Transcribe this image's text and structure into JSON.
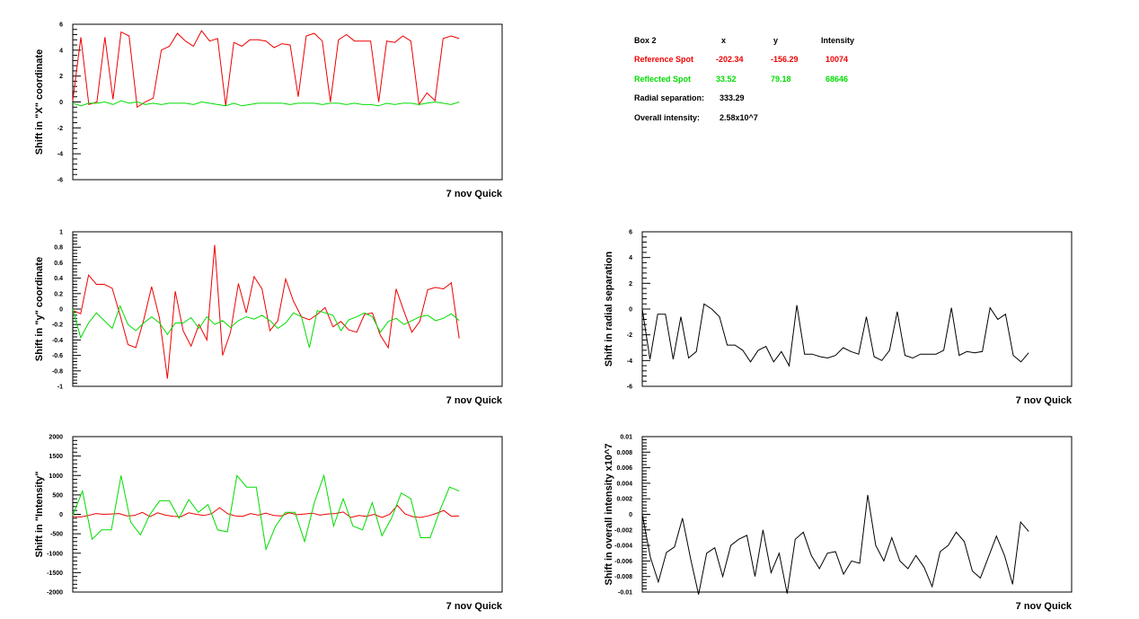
{
  "colors": {
    "reference": "#ee0000",
    "reflected": "#00dd00",
    "single": "#000000",
    "axis": "#000000"
  },
  "info_box": {
    "title": "Box 2",
    "col_x": "x",
    "col_y": "y",
    "col_intensity": "Intensity",
    "reference_label": "Reference Spot",
    "reference_x": "-202.34",
    "reference_y": "-156.29",
    "reference_intensity": "10074",
    "reflected_label": "Reflected Spot",
    "reflected_x": "33.52",
    "reflected_y": "79.18",
    "reflected_intensity": "68646",
    "radial_label": "Radial separation:",
    "radial_value": "333.29",
    "overall_label": "Overall intensity:",
    "overall_value": "2.58x10^7"
  },
  "chart_data": [
    {
      "id": "x-shift",
      "type": "line",
      "ylabel": "Shift in \"X\" coordinate",
      "xtitle": "7 nov Quick",
      "ylim": [
        -6,
        6
      ],
      "major_ticks": [
        -6,
        -4,
        -2,
        0,
        2,
        4,
        6
      ],
      "tick_labels": [
        "-6",
        "-4",
        "-2",
        "0",
        "2",
        "4",
        "6"
      ],
      "series": [
        {
          "color": "#ee0000",
          "values": [
            0.1,
            5.0,
            -0.2,
            0.0,
            5.0,
            0.2,
            5.4,
            5.1,
            -0.4,
            0.0,
            0.3,
            4.0,
            4.3,
            5.3,
            4.7,
            4.3,
            5.5,
            4.7,
            4.9,
            -0.3,
            4.6,
            4.3,
            4.8,
            4.8,
            4.7,
            4.2,
            4.5,
            4.4,
            0.4,
            5.1,
            5.3,
            4.7,
            0.0,
            4.8,
            5.2,
            4.7,
            4.7,
            4.7,
            0.0,
            4.7,
            4.6,
            5.1,
            4.7,
            -0.2,
            0.7,
            0.1,
            4.9,
            5.1,
            4.9
          ]
        },
        {
          "color": "#00dd00",
          "values": [
            -0.1,
            -0.3,
            -0.1,
            -0.1,
            0.0,
            -0.2,
            0.1,
            -0.1,
            0.0,
            -0.2,
            -0.1,
            -0.2,
            -0.1,
            -0.1,
            -0.1,
            -0.2,
            0.0,
            -0.1,
            -0.2,
            -0.3,
            -0.1,
            -0.3,
            -0.2,
            -0.1,
            -0.1,
            -0.1,
            -0.1,
            -0.2,
            -0.1,
            -0.1,
            -0.1,
            -0.2,
            -0.1,
            -0.1,
            -0.2,
            -0.1,
            -0.2,
            -0.2,
            -0.3,
            -0.1,
            -0.2,
            -0.1,
            -0.1,
            -0.2,
            -0.1,
            0.0,
            -0.1,
            -0.2,
            0.0
          ]
        }
      ]
    },
    {
      "id": "y-shift",
      "type": "line",
      "ylabel": "Shift in \"y\" coordinate",
      "xtitle": "7 nov Quick",
      "ylim": [
        -1,
        1
      ],
      "major_ticks": [
        -1,
        -0.8,
        -0.6,
        -0.4,
        -0.2,
        0,
        0.2,
        0.4,
        0.6,
        0.8,
        1
      ],
      "tick_labels": [
        "-1",
        "-0.8",
        "-0.6",
        "-0.4",
        "-0.2",
        "0",
        "0.2",
        "0.4",
        "0.6",
        "0.8",
        "1"
      ],
      "series": [
        {
          "color": "#ee0000",
          "values": [
            -0.02,
            -0.06,
            0.44,
            0.32,
            0.32,
            0.27,
            -0.08,
            -0.46,
            -0.5,
            -0.14,
            0.29,
            -0.12,
            -0.9,
            0.23,
            -0.28,
            -0.48,
            -0.2,
            -0.4,
            0.83,
            -0.6,
            -0.3,
            0.33,
            -0.05,
            0.42,
            0.26,
            -0.28,
            -0.15,
            0.39,
            0.1,
            -0.1,
            -0.14,
            -0.07,
            0.02,
            -0.23,
            -0.16,
            -0.27,
            -0.3,
            -0.07,
            -0.05,
            -0.34,
            -0.5,
            0.26,
            -0.03,
            -0.3,
            -0.16,
            0.25,
            0.28,
            0.26,
            0.34,
            -0.38
          ]
        },
        {
          "color": "#00dd00",
          "values": [
            0.0,
            -0.37,
            -0.18,
            -0.05,
            -0.15,
            -0.25,
            0.04,
            -0.2,
            -0.28,
            -0.18,
            -0.1,
            -0.18,
            -0.33,
            -0.18,
            -0.18,
            -0.11,
            -0.25,
            -0.1,
            -0.2,
            -0.15,
            -0.24,
            -0.15,
            -0.1,
            -0.13,
            -0.08,
            -0.15,
            -0.25,
            -0.18,
            -0.05,
            -0.1,
            -0.5,
            -0.02,
            -0.05,
            -0.08,
            -0.28,
            -0.14,
            -0.1,
            -0.05,
            -0.1,
            -0.3,
            -0.16,
            -0.12,
            -0.2,
            -0.15,
            -0.1,
            -0.08,
            -0.15,
            -0.12,
            -0.06,
            -0.15
          ]
        }
      ]
    },
    {
      "id": "intensity-shift",
      "type": "line",
      "ylabel": "Shift in \"Intensity\"",
      "xtitle": "7 nov Quick",
      "ylim": [
        -2000,
        2000
      ],
      "major_ticks": [
        -2000,
        -1500,
        -1000,
        -500,
        0,
        500,
        1000,
        1500,
        2000
      ],
      "tick_labels": [
        "-2000",
        "-1500",
        "-1000",
        "-500",
        "0",
        "500",
        "1000",
        "1500",
        "2000"
      ],
      "series": [
        {
          "color": "#ee0000",
          "values": [
            -50,
            -70,
            -30,
            20,
            0,
            10,
            20,
            -40,
            -30,
            50,
            -60,
            40,
            -20,
            -50,
            -60,
            40,
            0,
            -30,
            20,
            170,
            20,
            -40,
            -50,
            20,
            -20,
            30,
            -30,
            -40,
            40,
            -10,
            10,
            30,
            -20,
            10,
            20,
            60,
            -80,
            -30,
            -50,
            0,
            -80,
            0,
            230,
            10,
            -60,
            -80,
            -40,
            20,
            100,
            -50,
            -40
          ]
        },
        {
          "color": "#00dd00",
          "values": [
            -30,
            600,
            -640,
            -400,
            -400,
            1000,
            -200,
            -530,
            0,
            350,
            350,
            -100,
            380,
            50,
            250,
            -400,
            -450,
            1000,
            700,
            700,
            -900,
            -300,
            50,
            50,
            -700,
            300,
            1000,
            -300,
            400,
            -300,
            -400,
            300,
            -550,
            -100,
            550,
            400,
            -600,
            -600,
            100,
            700,
            600
          ]
        }
      ]
    },
    {
      "id": "radial-shift",
      "type": "line",
      "ylabel": "Shift in radial separation",
      "xtitle": "7 nov Quick",
      "ylim": [
        -6,
        6
      ],
      "major_ticks": [
        -6,
        -4,
        -2,
        0,
        2,
        4,
        6
      ],
      "tick_labels": [
        "-6",
        "-4",
        "-2",
        "0",
        "2",
        "4",
        "6"
      ],
      "series": [
        {
          "color": "#000000",
          "values": [
            0.0,
            -3.9,
            -0.4,
            -0.4,
            -3.9,
            -0.6,
            -3.8,
            -3.3,
            0.4,
            0.0,
            -0.6,
            -2.8,
            -2.8,
            -3.2,
            -4.1,
            -3.2,
            -2.9,
            -4.1,
            -3.3,
            -4.4,
            0.3,
            -3.5,
            -3.5,
            -3.7,
            -3.8,
            -3.6,
            -3.0,
            -3.3,
            -3.5,
            -0.6,
            -3.7,
            -4.0,
            -3.2,
            -0.2,
            -3.6,
            -3.8,
            -3.5,
            -3.5,
            -3.5,
            -3.2,
            0.1,
            -3.6,
            -3.3,
            -3.4,
            -3.3,
            0.1,
            -0.8,
            -0.4,
            -3.6,
            -4.1,
            -3.4
          ]
        }
      ]
    },
    {
      "id": "overall-intensity-shift",
      "type": "line",
      "ylabel": "Shift in overall intensity x10^7",
      "xtitle": "7 nov Quick",
      "ylim": [
        -0.01,
        0.01
      ],
      "major_ticks": [
        -0.01,
        -0.008,
        -0.006,
        -0.004,
        -0.002,
        0,
        0.002,
        0.004,
        0.006,
        0.008,
        0.01
      ],
      "tick_labels": [
        "-0.01",
        "-0.008",
        "-0.006",
        "-0.004",
        "-0.002",
        "0",
        "0.002",
        "0.004",
        "0.006",
        "0.008",
        "0.01"
      ],
      "series": [
        {
          "color": "#000000",
          "values": [
            0.0,
            -0.0055,
            -0.0087,
            -0.0049,
            -0.0042,
            -0.0005,
            -0.0057,
            -0.0103,
            -0.005,
            -0.0043,
            -0.008,
            -0.004,
            -0.0032,
            -0.0027,
            -0.008,
            -0.002,
            -0.0075,
            -0.005,
            -0.0102,
            -0.0032,
            -0.0023,
            -0.0053,
            -0.007,
            -0.005,
            -0.0048,
            -0.0077,
            -0.006,
            -0.0063,
            0.0025,
            -0.004,
            -0.006,
            -0.003,
            -0.006,
            -0.007,
            -0.0053,
            -0.0068,
            -0.0093,
            -0.0048,
            -0.004,
            -0.0023,
            -0.0035,
            -0.0073,
            -0.0082,
            -0.0055,
            -0.0028,
            -0.0053,
            -0.009,
            -0.001,
            -0.0022
          ]
        }
      ]
    }
  ]
}
